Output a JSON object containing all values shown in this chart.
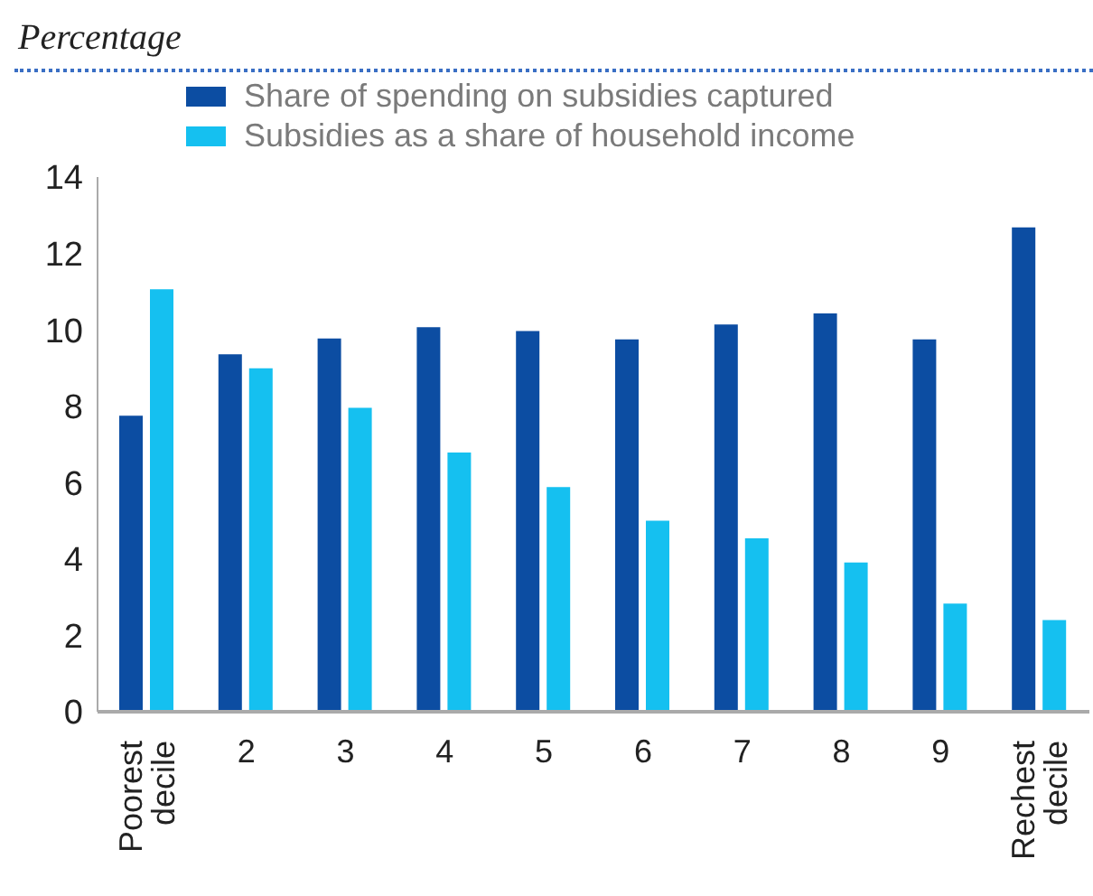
{
  "chart_data": {
    "type": "bar",
    "ylabel": "Percentage",
    "categories": [
      "Poorest decile",
      "2",
      "3",
      "4",
      "5",
      "6",
      "7",
      "8",
      "9",
      "Rechest decile"
    ],
    "series": [
      {
        "name": "Share of spending on subsidies captured",
        "color": "#0c4da2",
        "values": [
          7.75,
          9.36,
          9.77,
          10.07,
          9.97,
          9.75,
          10.14,
          10.43,
          9.75,
          12.68
        ]
      },
      {
        "name": "Subsidies as a share of household income",
        "color": "#15c0f0",
        "values": [
          11.06,
          8.99,
          7.96,
          6.79,
          5.88,
          5.0,
          4.54,
          3.91,
          2.83,
          2.4
        ]
      }
    ],
    "ylim": [
      0,
      14
    ],
    "yticks": [
      0,
      2,
      4,
      6,
      8,
      10,
      12,
      14
    ],
    "grid": false,
    "legend": "top left"
  }
}
